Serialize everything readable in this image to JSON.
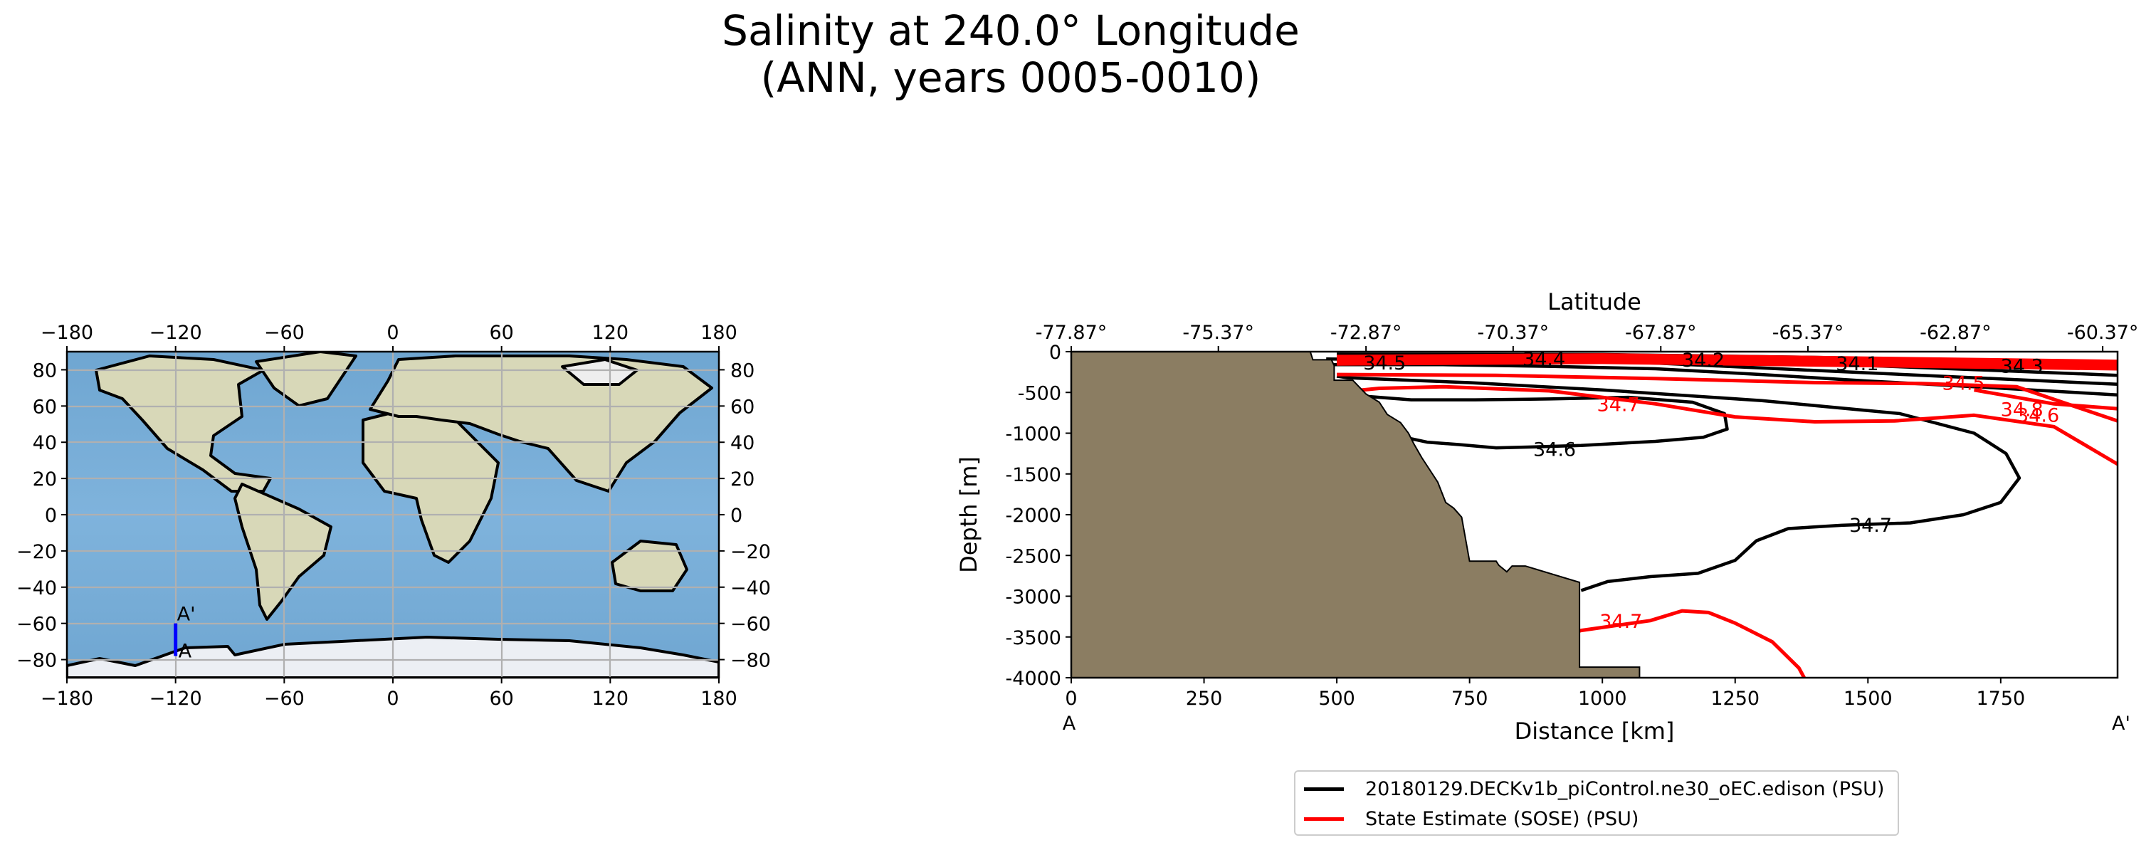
{
  "chart_data": [
    {
      "type": "map",
      "title_lines": [
        "Salinity at 240.0° Longitude",
        "(ANN, years 0005-0010)"
      ],
      "x_ticks": [
        "−180",
        "−120",
        "−60",
        "0",
        "60",
        "120",
        "180"
      ],
      "x_tick_values": [
        -180,
        -120,
        -60,
        0,
        60,
        120,
        180
      ],
      "y_ticks": [
        "80",
        "60",
        "40",
        "20",
        "0",
        "−20",
        "−40",
        "−60",
        "−80"
      ],
      "y_tick_values": [
        80,
        60,
        40,
        20,
        0,
        -20,
        -40,
        -60,
        -80
      ],
      "xlim": [
        -180,
        180
      ],
      "ylim": [
        -90,
        90
      ],
      "transect": {
        "lon": -120,
        "lat_start": -78,
        "lat_end": -60,
        "label_start": "A",
        "label_end": "A'",
        "color": "#0000ff"
      }
    },
    {
      "type": "contour",
      "top_axis_label": "Latitude",
      "top_ticks": [
        "-77.87°",
        "-75.37°",
        "-72.87°",
        "-70.37°",
        "-67.87°",
        "-65.37°",
        "-62.87°",
        "-60.37°"
      ],
      "top_tick_positions_km": [
        0,
        277,
        555,
        832,
        1110,
        1387,
        1665,
        1942
      ],
      "xlabel": "Distance [km]",
      "ylabel": "Depth [m]",
      "x_ticks": [
        0,
        250,
        500,
        750,
        1000,
        1250,
        1500,
        1750
      ],
      "y_ticks": [
        0,
        -500,
        -1000,
        -1500,
        -2000,
        -2500,
        -3000,
        -3500,
        -4000
      ],
      "xlim": [
        0,
        1970
      ],
      "ylim": [
        -4000,
        0
      ],
      "section_end_labels": [
        "A",
        "A'"
      ],
      "bathymetry_color": "#8b7d62",
      "bathymetry": {
        "distance_km": [
          0,
          450,
          455,
          490,
          495,
          495,
          530,
          555,
          580,
          595,
          620,
          635,
          645,
          660,
          675,
          690,
          705,
          720,
          735,
          750,
          765,
          800,
          805,
          820,
          830,
          855,
          957,
          957,
          1070,
          1070
        ],
        "depth_m": [
          0,
          0,
          -100,
          -100,
          -170,
          -350,
          -350,
          -520,
          -620,
          -770,
          -870,
          -1000,
          -1130,
          -1300,
          -1450,
          -1600,
          -1850,
          -1920,
          -2030,
          -2570,
          -2570,
          -2570,
          -2620,
          -2700,
          -2630,
          -2630,
          -2830,
          -3870,
          -3870,
          -4000
        ]
      },
      "series": [
        {
          "name": "20180129.DECKv1b_piControl.ne30_oEC.edison (PSU)",
          "color": "#000000",
          "contours": [
            {
              "label": "34.6",
              "label_at": [
                910,
                -1200
              ],
              "points": [
                [
                  500,
                  -500
                ],
                [
                  560,
                  -550
                ],
                [
                  640,
                  -590
                ],
                [
                  760,
                  -590
                ],
                [
                  900,
                  -580
                ],
                [
                  1050,
                  -560
                ],
                [
                  1170,
                  -620
                ],
                [
                  1230,
                  -760
                ],
                [
                  1235,
                  -950
                ],
                [
                  1190,
                  -1050
                ],
                [
                  1100,
                  -1100
                ],
                [
                  960,
                  -1150
                ],
                [
                  860,
                  -1170
                ],
                [
                  800,
                  -1180
                ],
                [
                  730,
                  -1140
                ],
                [
                  670,
                  -1110
                ],
                [
                  620,
                  -1040
                ],
                [
                  590,
                  -960
                ]
              ]
            },
            {
              "label": "34.7",
              "label_at": [
                1505,
                -2130
              ],
              "points": [
                [
                  960,
                  -2930
                ],
                [
                  1010,
                  -2820
                ],
                [
                  1090,
                  -2760
                ],
                [
                  1180,
                  -2720
                ],
                [
                  1250,
                  -2560
                ],
                [
                  1290,
                  -2320
                ],
                [
                  1350,
                  -2170
                ],
                [
                  1450,
                  -2130
                ],
                [
                  1580,
                  -2100
                ],
                [
                  1680,
                  -2000
                ],
                [
                  1750,
                  -1850
                ],
                [
                  1785,
                  -1550
                ],
                [
                  1760,
                  -1250
                ],
                [
                  1700,
                  -1000
                ],
                [
                  1560,
                  -760
                ],
                [
                  1300,
                  -600
                ],
                [
                  1000,
                  -470
                ],
                [
                  750,
                  -380
                ],
                [
                  520,
                  -320
                ],
                [
                  500,
                  -300
                ]
              ]
            },
            {
              "label": "34.5",
              "label_at": [
                590,
                -140
              ],
              "points": [
                [
                  480,
                  -160
                ],
                [
                  700,
                  -160
                ],
                [
                  900,
                  -180
                ],
                [
                  1100,
                  -210
                ],
                [
                  1300,
                  -280
                ],
                [
                  1500,
                  -360
                ],
                [
                  1700,
                  -430
                ],
                [
                  1970,
                  -530
                ]
              ]
            },
            {
              "label": "34.4",
              "label_at": [
                890,
                -90
              ],
              "points": [
                [
                  480,
                  -90
                ],
                [
                  700,
                  -100
                ],
                [
                  900,
                  -100
                ],
                [
                  1100,
                  -140
                ],
                [
                  1300,
                  -200
                ],
                [
                  1500,
                  -260
                ],
                [
                  1700,
                  -320
                ],
                [
                  1970,
                  -400
                ]
              ]
            },
            {
              "label": "34.2",
              "label_at": [
                1190,
                -105
              ],
              "points": [
                [
                  500,
                  -70
                ],
                [
                  800,
                  -75
                ],
                [
                  1100,
                  -90
                ],
                [
                  1300,
                  -130
                ],
                [
                  1500,
                  -170
                ],
                [
                  1700,
                  -220
                ],
                [
                  1970,
                  -290
                ]
              ]
            },
            {
              "label": "34.1",
              "label_at": [
                1480,
                -150
              ],
              "points": [
                [
                  500,
                  -50
                ],
                [
                  900,
                  -55
                ],
                [
                  1200,
                  -75
                ],
                [
                  1500,
                  -120
                ],
                [
                  1750,
                  -170
                ],
                [
                  1970,
                  -210
                ]
              ]
            },
            {
              "label": "34.3",
              "label_at": [
                1790,
                -180
              ],
              "points": [
                [
                  500,
                  -30
                ],
                [
                  1000,
                  -35
                ],
                [
                  1400,
                  -70
                ],
                [
                  1970,
                  -150
                ]
              ]
            }
          ]
        },
        {
          "name": "State Estimate (SOSE) (PSU)",
          "color": "#ff0000",
          "contours": [
            {
              "label": "34.7",
              "label_at": [
                1035,
                -3310
              ],
              "points": [
                [
                  945,
                  -3450
                ],
                [
                  960,
                  -3420
                ],
                [
                  1090,
                  -3300
                ],
                [
                  1150,
                  -3180
                ],
                [
                  1200,
                  -3200
                ],
                [
                  1250,
                  -3330
                ],
                [
                  1320,
                  -3560
                ],
                [
                  1370,
                  -3880
                ],
                [
                  1380,
                  -4000
                ]
              ]
            },
            {
              "label": "34.7",
              "label_at": [
                1030,
                -650
              ],
              "points": [
                [
                  500,
                  -500
                ],
                [
                  580,
                  -450
                ],
                [
                  700,
                  -430
                ],
                [
                  900,
                  -480
                ],
                [
                  1100,
                  -640
                ],
                [
                  1250,
                  -800
                ],
                [
                  1400,
                  -860
                ],
                [
                  1550,
                  -850
                ],
                [
                  1700,
                  -780
                ],
                [
                  1850,
                  -920
                ],
                [
                  1970,
                  -1380
                ]
              ]
            },
            {
              "label": "34.5",
              "label_at": [
                1680,
                -390
              ],
              "points": [
                [
                  500,
                  -280
                ],
                [
                  800,
                  -290
                ],
                [
                  1100,
                  -330
                ],
                [
                  1400,
                  -380
                ],
                [
                  1600,
                  -390
                ],
                [
                  1780,
                  -430
                ],
                [
                  1970,
                  -850
                ]
              ]
            },
            {
              "label": "34.6",
              "label_at": [
                1820,
                -780
              ],
              "points": [
                [
                  1700,
                  -470
                ],
                [
                  1850,
                  -640
                ],
                [
                  1970,
                  -700
                ]
              ]
            },
            {
              "label": "34.8",
              "label_at": [
                1790,
                -710
              ],
              "points": []
            },
            {
              "label": "",
              "label_at": null,
              "points": [
                [
                  500,
                  -90
                ],
                [
                  1000,
                  -70
                ],
                [
                  1500,
                  -110
                ],
                [
                  1970,
                  -150
                ]
              ]
            },
            {
              "label": "",
              "label_at": null,
              "points": [
                [
                  500,
                  -120
                ],
                [
                  1000,
                  -100
                ],
                [
                  1500,
                  -140
                ],
                [
                  1970,
                  -180
                ]
              ]
            },
            {
              "label": "",
              "label_at": null,
              "points": [
                [
                  500,
                  -150
                ],
                [
                  1000,
                  -130
                ],
                [
                  1500,
                  -170
                ],
                [
                  1970,
                  -210
                ]
              ]
            },
            {
              "label": "",
              "label_at": null,
              "points": [
                [
                  500,
                  -60
                ],
                [
                  1000,
                  -40
                ],
                [
                  1500,
                  -80
                ],
                [
                  1970,
                  -120
                ]
              ]
            }
          ]
        }
      ]
    }
  ]
}
